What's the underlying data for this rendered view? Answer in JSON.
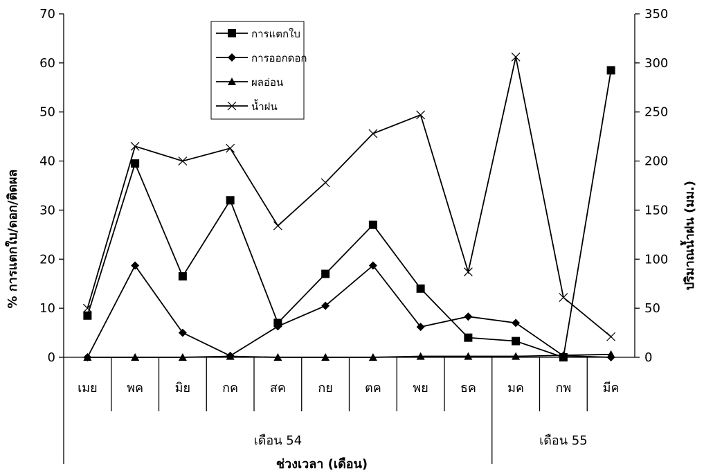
{
  "chart_data": {
    "type": "line",
    "title": "",
    "ylabel": "% การแตกใบ/ดอก/ติดผล",
    "y2label": "ปริมาณน้ำฝน (มม.)",
    "xlabel": "ช่วงเวลา (เดือน)",
    "categories": [
      "เมย",
      "พค",
      "มิย",
      "กค",
      "สค",
      "กย",
      "ตค",
      "พย",
      "ธค",
      "มค",
      "กพ",
      "มีค"
    ],
    "groups": [
      {
        "label": "เดือน 54",
        "from": 0,
        "to": 8
      },
      {
        "label": "เดือน 55",
        "from": 9,
        "to": 11
      }
    ],
    "ylim": [
      0,
      70
    ],
    "yticks": [
      "0",
      "10",
      "20",
      "30",
      "40",
      "50",
      "60",
      "70"
    ],
    "y2lim": [
      0,
      350
    ],
    "y2ticks": [
      "0",
      "50",
      "100",
      "150",
      "200",
      "250",
      "300",
      "350"
    ],
    "grid": false,
    "legend_position": "top-center",
    "series": [
      {
        "name": "การแตกใบ",
        "axis": "left",
        "marker": "square",
        "values": [
          8.5,
          39.5,
          16.5,
          32,
          7,
          17,
          27,
          14,
          4,
          3.3,
          0,
          58.5
        ]
      },
      {
        "name": "การออกดอก",
        "axis": "left",
        "marker": "diamond",
        "values": [
          0,
          18.7,
          5,
          0.3,
          6.3,
          10.5,
          18.7,
          6.2,
          8.3,
          7,
          0.3,
          0
        ]
      },
      {
        "name": "ผลอ่อน",
        "axis": "left",
        "marker": "triangle",
        "values": [
          0,
          0,
          0,
          0.2,
          0,
          0,
          0,
          0.2,
          0.2,
          0.2,
          0.4,
          0.6
        ]
      },
      {
        "name": "น้ำฝน",
        "axis": "right",
        "marker": "x",
        "values": [
          50,
          215,
          200,
          213,
          134,
          178,
          228,
          247,
          87,
          306,
          61,
          21
        ]
      }
    ]
  }
}
